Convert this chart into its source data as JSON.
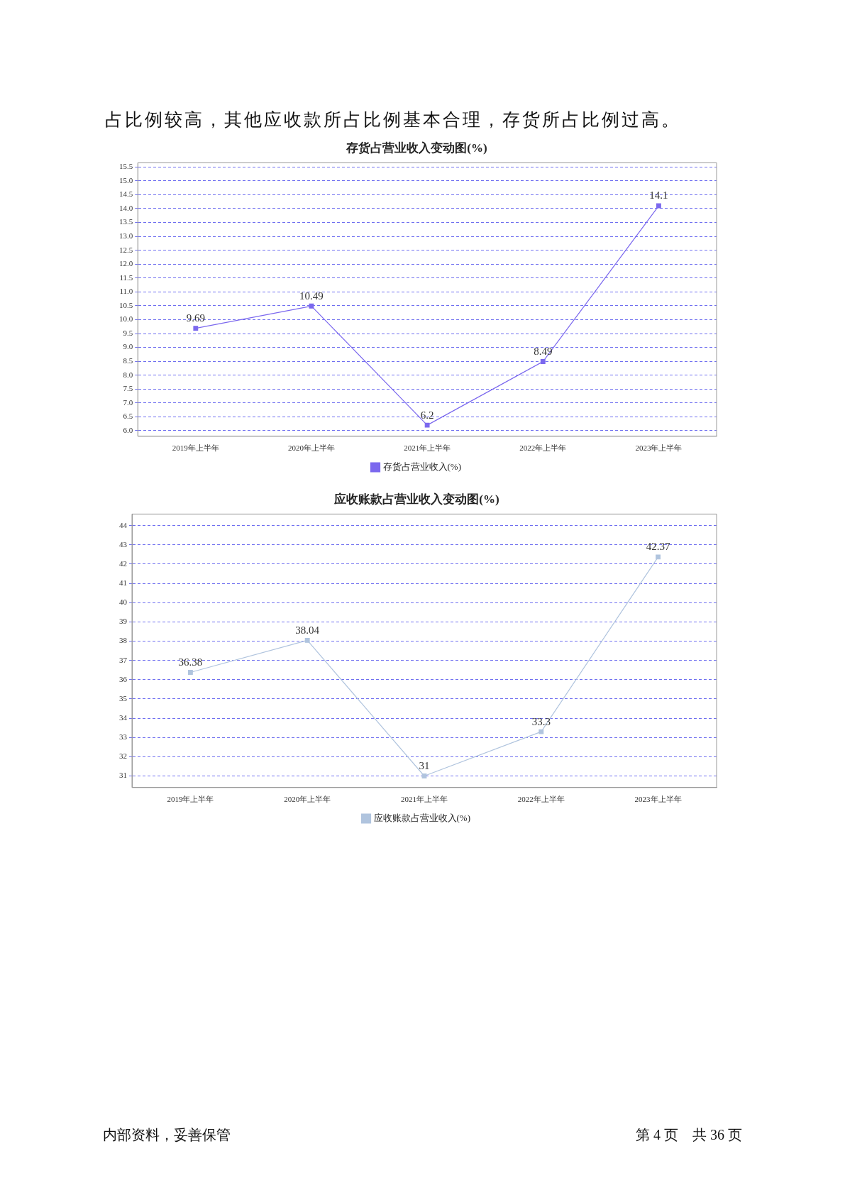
{
  "chart_data": [
    {
      "type": "line",
      "title": "存货占营业收入变动图(%)",
      "categories": [
        "2019年上半年",
        "2020年上半年",
        "2021年上半年",
        "2022年上半年",
        "2023年上半年"
      ],
      "series": [
        {
          "name": "存货占营业收入(%)",
          "color": "#7b68ee",
          "values": [
            9.69,
            10.49,
            6.2,
            8.49,
            14.1
          ]
        }
      ],
      "ylim": [
        5.8,
        15.65
      ],
      "yticks": [
        {
          "value": 6,
          "label": "6.0"
        },
        6.5,
        {
          "value": 7,
          "label": "7.0"
        },
        7.5,
        {
          "value": 8,
          "label": "8.0"
        },
        8.5,
        {
          "value": 9,
          "label": "9.0"
        },
        9.5,
        {
          "value": 10,
          "label": "10.0"
        },
        10.5,
        {
          "value": 11,
          "label": "11.0"
        },
        11.5,
        {
          "value": 12,
          "label": "12.0"
        },
        12.5,
        {
          "value": 13,
          "label": "13.0"
        },
        13.5,
        {
          "value": 14,
          "label": "14.0"
        },
        14.5,
        {
          "value": 15,
          "label": "15.0"
        },
        15.5
      ],
      "grid": "y",
      "legend": "bottom",
      "marker": "square",
      "line_style": "solid",
      "data_labels": true,
      "annotations": [
        "占比例较高，其他应收款所占比例基本合理，存货所占比例过高。"
      ]
    },
    {
      "type": "line",
      "title": "应收账款占营业收入变动图(%)",
      "categories": [
        "2019年上半年",
        "2020年上半年",
        "2021年上半年",
        "2022年上半年",
        "2023年上半年"
      ],
      "series": [
        {
          "name": "应收账款占营业收入(%)",
          "color": "#b0c4de",
          "values": [
            36.38,
            38.04,
            31,
            33.3,
            42.37
          ]
        }
      ],
      "ylim": [
        30.4,
        44.6
      ],
      "yticks": [
        31,
        32,
        33,
        34,
        35,
        36,
        37,
        38,
        39,
        40,
        41,
        42,
        43,
        44
      ],
      "grid": "y",
      "legend": "bottom",
      "marker": "square",
      "line_style": "solid",
      "data_labels": true,
      "annotations": [
        "内部资料，妥善保管",
        "第 4 页　共 36 页"
      ]
    }
  ]
}
